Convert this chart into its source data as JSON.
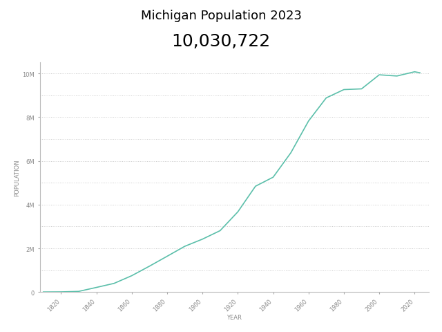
{
  "title_line1": "Michigan Population 2023",
  "title_line2": "10,030,722",
  "xlabel": "YEAR",
  "ylabel": "POPULATION",
  "line_color": "#5bbfaa",
  "background_color": "#ffffff",
  "years": [
    1810,
    1820,
    1830,
    1840,
    1850,
    1860,
    1870,
    1880,
    1890,
    1900,
    1910,
    1920,
    1930,
    1940,
    1950,
    1960,
    1970,
    1980,
    1990,
    2000,
    2010,
    2020,
    2023
  ],
  "population": [
    4762,
    8896,
    31639,
    212267,
    397654,
    749113,
    1184059,
    1636937,
    2093890,
    2420982,
    2810173,
    3668412,
    4842325,
    5256106,
    6371766,
    7823194,
    8881826,
    9262078,
    9295297,
    9938444,
    9883640,
    10077331,
    10030722
  ],
  "ylim": [
    0,
    10500000
  ],
  "xlim": [
    1808,
    2028
  ],
  "ytick_major_values": [
    0,
    2000000,
    4000000,
    6000000,
    8000000,
    10000000
  ],
  "ytick_major_labels": [
    "0",
    "2M",
    "4M",
    "6M",
    "8M",
    "10M"
  ],
  "ytick_minor_values": [
    1000000,
    3000000,
    5000000,
    7000000,
    9000000
  ],
  "xtick_values": [
    1820,
    1840,
    1860,
    1880,
    1900,
    1920,
    1940,
    1960,
    1980,
    2000,
    2020
  ],
  "grid_color": "#cccccc",
  "title_fontsize": 13,
  "subtitle_fontsize": 18,
  "axis_label_fontsize": 6,
  "tick_fontsize": 6,
  "line_width": 1.2
}
